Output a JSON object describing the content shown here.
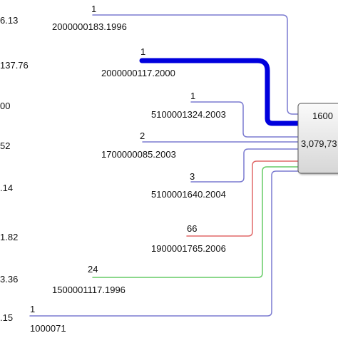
{
  "left_labels": [
    "6.13",
    "137.76",
    "00",
    "52",
    ".14",
    "1.82",
    "3.36",
    ".15"
  ],
  "target": {
    "count": "1600",
    "value": "3,079,73"
  },
  "flows": [
    {
      "label": "2000000183.1996",
      "count": "1",
      "color": "#7a7ad0",
      "weight": "thin"
    },
    {
      "label": "2000000117.2000",
      "count": "1",
      "color": "#0000dd",
      "weight": "thick"
    },
    {
      "label": "5100001324.2003",
      "count": "1",
      "color": "#7a7ad0",
      "weight": "thin"
    },
    {
      "label": "1700000085.2003",
      "count": "2",
      "color": "#7a7ad0",
      "weight": "thin"
    },
    {
      "label": "5100001640.2004",
      "count": "3",
      "color": "#7a7ad0",
      "weight": "thin"
    },
    {
      "label": "1900001765.2006",
      "count": "66",
      "color": "#e06868",
      "weight": "thin"
    },
    {
      "label": "1500001117.1996",
      "count": "24",
      "color": "#66cc66",
      "weight": "thin"
    },
    {
      "label": "1000071",
      "count": "1",
      "color": "#7a7ad0",
      "weight": "thin"
    }
  ]
}
